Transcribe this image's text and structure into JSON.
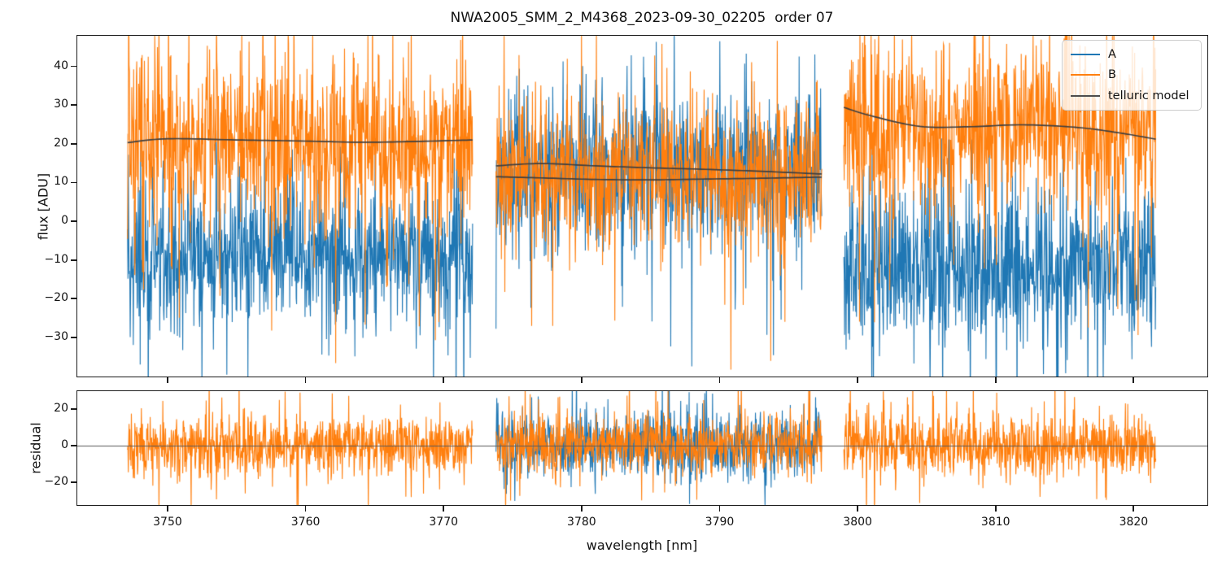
{
  "title": "NWA2005_SMM_2_M4368_2023-09-30_02205  order 07",
  "chart_data": {
    "type": "line",
    "title": "NWA2005_SMM_2_M4368_2023-09-30_02205  order 07",
    "xlabel": "wavelength [nm]",
    "xlim": [
      3743.4,
      3825.4
    ],
    "xticks": [
      {
        "value": 3750,
        "label": "3750"
      },
      {
        "value": 3760,
        "label": "3760"
      },
      {
        "value": 3770,
        "label": "3770"
      },
      {
        "value": 3780,
        "label": "3780"
      },
      {
        "value": 3790,
        "label": "3790"
      },
      {
        "value": 3800,
        "label": "3800"
      },
      {
        "value": 3810,
        "label": "3810"
      },
      {
        "value": 3820,
        "label": "3820"
      }
    ],
    "grid": false,
    "legend": {
      "position": "upper right",
      "entries": [
        {
          "label": "A",
          "color": "#1f77b4"
        },
        {
          "label": "B",
          "color": "#ff7f0e"
        },
        {
          "label": "telluric model",
          "color": "#4d4d4d"
        }
      ]
    },
    "colors": {
      "A": "#1f77b4",
      "B": "#ff7f0e",
      "model": "#3f3f3f",
      "zero_line": "#5a5a5a"
    },
    "noise_seed": 20230930,
    "panels": [
      {
        "name": "flux",
        "ylabel": "flux [ADU]",
        "ylim": [
          -40.3,
          48.1
        ],
        "yticks": [
          {
            "value": 40,
            "label": "40"
          },
          {
            "value": 30,
            "label": "30"
          },
          {
            "value": 20,
            "label": "20"
          },
          {
            "value": 10,
            "label": "10"
          },
          {
            "value": 0,
            "label": "0"
          },
          {
            "value": -10,
            "label": "−10"
          },
          {
            "value": -20,
            "label": "−20"
          },
          {
            "value": -30,
            "label": "−30"
          }
        ]
      },
      {
        "name": "residual",
        "ylabel": "residual",
        "ylim": [
          -32.9,
          30.2
        ],
        "yticks": [
          {
            "value": 20,
            "label": "20"
          },
          {
            "value": 0,
            "label": "0"
          },
          {
            "value": -20,
            "label": "−20"
          }
        ],
        "zero_line": 0
      }
    ],
    "segments": [
      {
        "x_range": [
          3747.1,
          3772.1
        ],
        "flux": {
          "A": {
            "mean": -9,
            "std": 9
          },
          "B": {
            "mean": 20,
            "std": 11
          }
        },
        "residual": {
          "B": {
            "mean": 0,
            "std": 8
          }
        },
        "model_lines": [
          [
            [
              3747.1,
              20.3
            ],
            [
              3750,
              21.3
            ],
            [
              3755,
              21.0
            ],
            [
              3760,
              20.7
            ],
            [
              3764,
              20.4
            ],
            [
              3768,
              20.6
            ],
            [
              3772.1,
              21.0
            ]
          ]
        ]
      },
      {
        "x_range": [
          3773.8,
          3797.4
        ],
        "flux": {
          "A": {
            "mean": 13,
            "std": 10
          },
          "B": {
            "mean": 11.5,
            "std": 10
          }
        },
        "residual": {
          "A": {
            "mean": 0,
            "std": 9
          },
          "B": {
            "mean": 0,
            "std": 8
          }
        },
        "model_lines": [
          [
            [
              3773.8,
              14.3
            ],
            [
              3777,
              14.9
            ],
            [
              3781,
              14.3
            ],
            [
              3785,
              13.8
            ],
            [
              3789,
              13.4
            ],
            [
              3793,
              12.9
            ],
            [
              3797.4,
              12.2
            ]
          ],
          [
            [
              3773.8,
              11.5
            ],
            [
              3777,
              11.2
            ],
            [
              3781,
              10.8
            ],
            [
              3785,
              10.7
            ],
            [
              3789,
              10.9
            ],
            [
              3793,
              11.1
            ],
            [
              3797.4,
              11.4
            ]
          ]
        ]
      },
      {
        "x_range": [
          3799.0,
          3821.6
        ],
        "flux": {
          "A": {
            "mean": -12,
            "std": 10
          },
          "B": {
            "mean": 25,
            "std": 11
          }
        },
        "residual": {
          "B": {
            "mean": 0,
            "std": 9
          }
        },
        "model_lines": [
          [
            [
              3799,
              29.4
            ],
            [
              3801,
              27.2
            ],
            [
              3804.5,
              24.5
            ],
            [
              3808,
              24.4
            ],
            [
              3812,
              24.9
            ],
            [
              3816,
              24.2
            ],
            [
              3819,
              22.8
            ],
            [
              3821.6,
              21.2
            ]
          ]
        ]
      }
    ]
  }
}
